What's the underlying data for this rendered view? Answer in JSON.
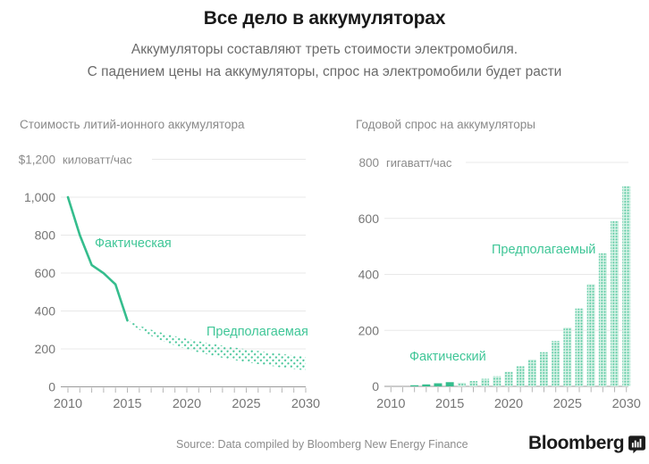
{
  "header": {
    "title": "Все дело в аккумуляторах",
    "subtitle_line1": "Аккумуляторы составляют треть стоимости электромобиля.",
    "subtitle_line2": "С падением цены на аккумуляторы, спрос на электромобили будет расти"
  },
  "colors": {
    "accent_green": "#35bd8d",
    "label_green": "#3fc697",
    "band_dot": "#49c79b",
    "hatch_bg": "#d7f2e6",
    "hatch_dot": "#5bcaa3",
    "grid": "#e8e8e8",
    "axis": "#9a9a9a",
    "tick": "#b5b5b5",
    "ink": "#1a1a1a",
    "text_gray": "#767676"
  },
  "chart_data": [
    {
      "type": "line",
      "title": "Стоимость литий-ионного аккумулятора",
      "unit_value": "$1,200",
      "unit_label": "киловатт/час",
      "xlim": [
        2010,
        2030
      ],
      "ylim": [
        0,
        1200
      ],
      "yticks": [
        0,
        200,
        400,
        600,
        800,
        1000
      ],
      "ytick_labels": [
        "0",
        "200",
        "400",
        "600",
        "800",
        "1,000"
      ],
      "top_grid_value": 1200,
      "xtick_labels": [
        "2010",
        "2015",
        "2020",
        "2025",
        "2030"
      ],
      "xtick_label_years": [
        2010,
        2015,
        2020,
        2025,
        2030
      ],
      "actual": {
        "label": "Фактическая",
        "years": [
          2010,
          2011,
          2012,
          2013,
          2014,
          2015
        ],
        "values": [
          1000,
          800,
          642,
          599,
          540,
          350
        ]
      },
      "projected": {
        "label": "Предполагаемая",
        "years": [
          2015,
          2016,
          2017,
          2018,
          2019,
          2020,
          2021,
          2022,
          2023,
          2024,
          2025,
          2026,
          2027,
          2028,
          2029,
          2030
        ],
        "upper": [
          350,
          323,
          301,
          283,
          267,
          253,
          240,
          228,
          217,
          207,
          198,
          189,
          181,
          173,
          166,
          159
        ],
        "lower": [
          344,
          301,
          268,
          241,
          218,
          199,
          182,
          167,
          153,
          141,
          130,
          120,
          111,
          102,
          94,
          87
        ]
      }
    },
    {
      "type": "bar",
      "title": "Годовой спрос на аккумуляторы",
      "unit_value": "800",
      "unit_label": "гигаватт/час",
      "xlim": [
        2010,
        2030
      ],
      "ylim": [
        0,
        800
      ],
      "yticks": [
        0,
        200,
        400,
        600
      ],
      "ytick_labels": [
        "0",
        "200",
        "400",
        "600"
      ],
      "top_grid_value": 800,
      "xtick_labels": [
        "2010",
        "2015",
        "2020",
        "2025",
        "2030"
      ],
      "xtick_label_years": [
        2010,
        2015,
        2020,
        2025,
        2030
      ],
      "actual": {
        "label": "Фактический",
        "years": [
          2012,
          2013,
          2014,
          2015
        ],
        "values": [
          4,
          7,
          11,
          15
        ]
      },
      "projected": {
        "label": "Предполагаемый",
        "years": [
          2016,
          2017,
          2018,
          2019,
          2020,
          2021,
          2022,
          2023,
          2024,
          2025,
          2026,
          2027,
          2028,
          2029,
          2030
        ],
        "values": [
          13,
          19,
          27,
          36,
          52,
          72,
          96,
          122,
          162,
          210,
          278,
          365,
          475,
          590,
          715
        ]
      }
    }
  ],
  "footer": {
    "source": "Source: Data compiled by Bloomberg New Energy Finance",
    "logo_text": "Bloomberg"
  }
}
